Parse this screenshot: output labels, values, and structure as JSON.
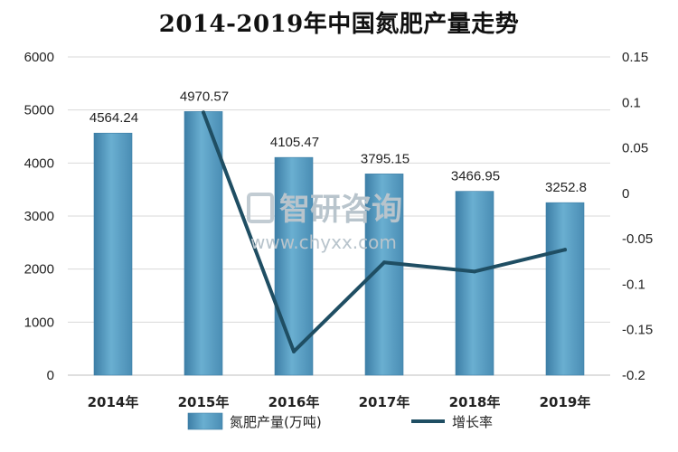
{
  "chart_data": {
    "type": "bar",
    "title": "2014-2019年中国氮肥产量走势",
    "categories": [
      "2014年",
      "2015年",
      "2016年",
      "2017年",
      "2018年",
      "2019年"
    ],
    "series": [
      {
        "name": "氮肥产量(万吨)",
        "type": "bar",
        "axis": "left",
        "values": [
          4564.24,
          4970.57,
          4105.47,
          3795.15,
          3466.95,
          3252.8
        ],
        "labels": [
          "4564.24",
          "4970.57",
          "4105.47",
          "3795.15",
          "3466.95",
          "3252.8"
        ]
      },
      {
        "name": "增长率",
        "type": "line",
        "axis": "right",
        "values": [
          null,
          0.089,
          -0.174,
          -0.076,
          -0.086,
          -0.062
        ]
      }
    ],
    "y_left": {
      "lim": [
        0,
        6000
      ],
      "ticks": [
        0,
        1000,
        2000,
        3000,
        4000,
        5000,
        6000
      ],
      "tick_labels": [
        "0",
        "1000",
        "2000",
        "3000",
        "4000",
        "5000",
        "6000"
      ]
    },
    "y_right": {
      "lim": [
        -0.2,
        0.15
      ],
      "ticks": [
        -0.2,
        -0.15,
        -0.1,
        -0.05,
        0,
        0.05,
        0.1,
        0.15
      ],
      "tick_labels": [
        "-0.2",
        "-0.15",
        "-0.1",
        "-0.05",
        "0",
        "0.05",
        "0.1",
        "0.15"
      ]
    },
    "grid": true,
    "legend_position": "bottom",
    "colors": {
      "bar": "#5b9fc3",
      "bar_dark": "#3d7ea6",
      "line": "#1f4e63"
    }
  },
  "watermark": {
    "brand": "智研咨询",
    "url": "www.chyxx.com"
  }
}
